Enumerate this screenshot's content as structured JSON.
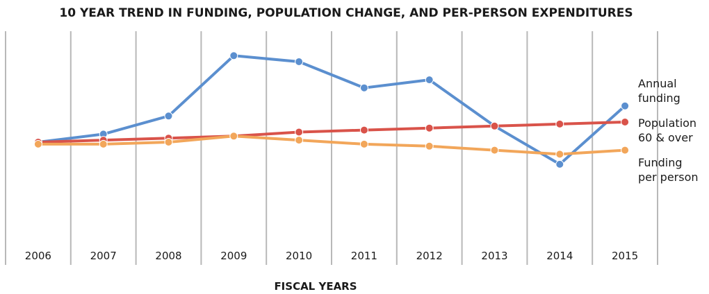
{
  "chart_data": {
    "type": "line",
    "title": "10 YEAR TREND IN FUNDING, POPULATION CHANGE, AND PER-PERSON EXPENDITURES",
    "xlabel": "FISCAL YEARS",
    "ylabel": "",
    "categories": [
      "2006",
      "2007",
      "2008",
      "2009",
      "2010",
      "2011",
      "2012",
      "2013",
      "2014",
      "2015"
    ],
    "ylim": [
      0,
      100
    ],
    "grid": "vertical",
    "legend_position": "right",
    "series": [
      {
        "name": "Annual\nfunding",
        "color": "#5b8fcf",
        "values": [
          50,
          54,
          63,
          93,
          90,
          77,
          81,
          58,
          39,
          68
        ]
      },
      {
        "name": "Population\n60 & over",
        "color": "#d9534a",
        "values": [
          50,
          51,
          52,
          53,
          55,
          56,
          57,
          58,
          59,
          60
        ]
      },
      {
        "name": "Funding\nper person",
        "color": "#f2a65a",
        "values": [
          49,
          49,
          50,
          53,
          51,
          49,
          48,
          46,
          44,
          46
        ]
      }
    ]
  }
}
